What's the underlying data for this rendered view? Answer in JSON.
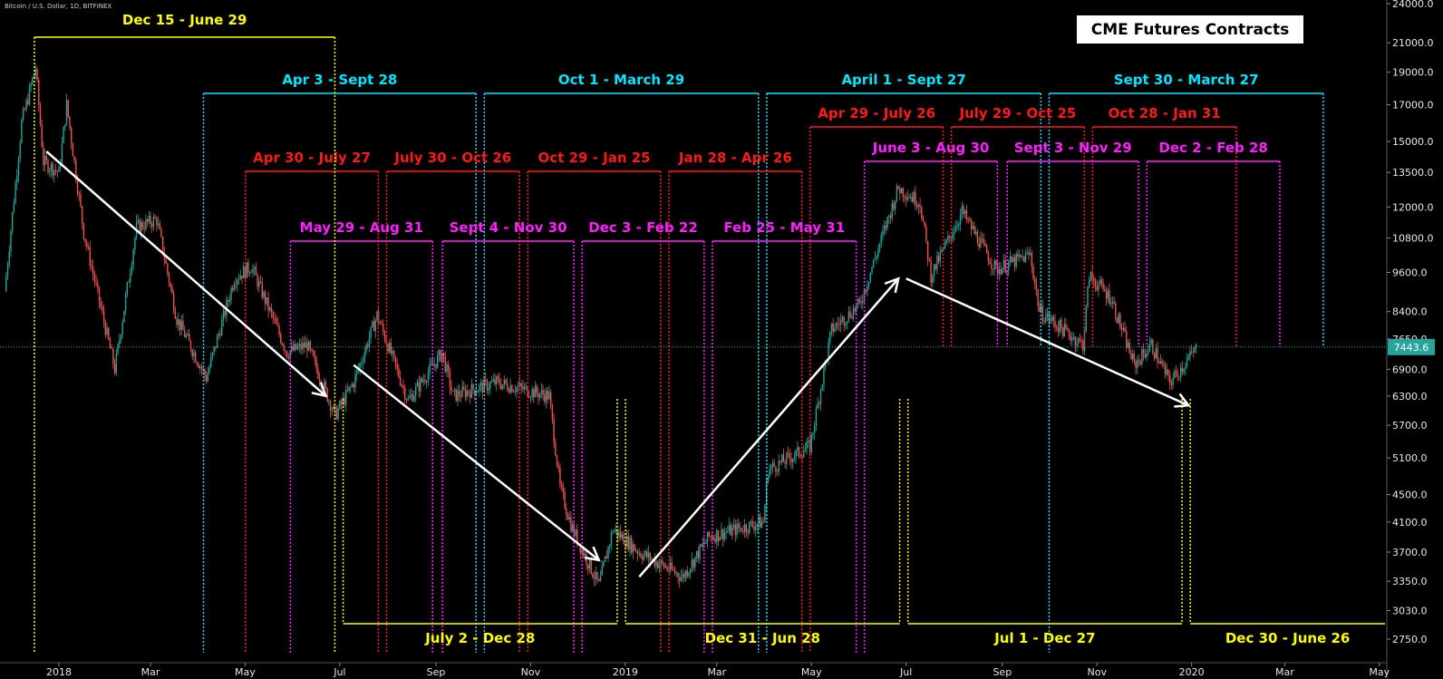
{
  "header": {
    "symbol": "Bitcoin / U.S. Dollar, 1D, BITFINEX",
    "legend": "CME Futures Contracts",
    "last_price": "7443.6"
  },
  "colors": {
    "background": "#000000",
    "semiannual": "#ffff00",
    "quarterly_cyan": "#00e5ff",
    "quarterly_red": "#ff1a1a",
    "quarterly_magenta": "#ff22ff",
    "candle_up": "#26a69a",
    "candle_down": "#ef5350",
    "trend_arrow": "#ffffff",
    "price_badge": "#26a69a"
  },
  "chart_data": {
    "type": "candlestick",
    "title": "",
    "x_tick_labels": [
      "2018",
      "Mar",
      "May",
      "Jul",
      "Sep",
      "Nov",
      "2019",
      "Mar",
      "May",
      "Jul",
      "Sep",
      "Nov",
      "2020",
      "Mar",
      "May"
    ],
    "x_ticks": [
      "2018-01-01",
      "2018-03-01",
      "2018-05-01",
      "2018-07-01",
      "2018-09-01",
      "2018-11-01",
      "2019-01-01",
      "2019-03-01",
      "2019-05-01",
      "2019-07-01",
      "2019-09-01",
      "2019-11-01",
      "2020-01-01",
      "2020-03-01",
      "2020-05-01"
    ],
    "y_scale": "log",
    "y_tick_labels": [
      "24000.0",
      "21000.0",
      "19000.0",
      "17000.0",
      "15000.0",
      "13500.0",
      "12000.0",
      "10800.0",
      "9600.0",
      "8400.0",
      "7650.0",
      "6900.0",
      "6300.0",
      "5700.0",
      "5100.0",
      "4500.0",
      "4100.0",
      "3700.0",
      "3350.0",
      "3030.0",
      "2750.0"
    ],
    "y_ticks": [
      24000,
      21000,
      19000,
      17000,
      15000,
      13500,
      12000,
      10800,
      9600,
      8400,
      7650,
      6900,
      6300,
      5700,
      5100,
      4500,
      4100,
      3700,
      3350,
      3030,
      2750
    ],
    "ylim": [
      2600,
      24500
    ],
    "last_price": 7443.6,
    "price_path": [
      {
        "date": "2017-11-27",
        "close": 9000
      },
      {
        "date": "2017-12-08",
        "close": 16000
      },
      {
        "date": "2017-12-17",
        "close": 19300
      },
      {
        "date": "2017-12-22",
        "close": 14000
      },
      {
        "date": "2018-01-01",
        "close": 13500
      },
      {
        "date": "2018-01-06",
        "close": 17000
      },
      {
        "date": "2018-01-17",
        "close": 11000
      },
      {
        "date": "2018-02-06",
        "close": 6900
      },
      {
        "date": "2018-02-20",
        "close": 11200
      },
      {
        "date": "2018-03-05",
        "close": 11500
      },
      {
        "date": "2018-03-18",
        "close": 8200
      },
      {
        "date": "2018-04-06",
        "close": 6700
      },
      {
        "date": "2018-04-24",
        "close": 9400
      },
      {
        "date": "2018-05-05",
        "close": 9800
      },
      {
        "date": "2018-05-28",
        "close": 7300
      },
      {
        "date": "2018-06-10",
        "close": 7500
      },
      {
        "date": "2018-06-28",
        "close": 5900
      },
      {
        "date": "2018-07-10",
        "close": 6600
      },
      {
        "date": "2018-07-25",
        "close": 8300
      },
      {
        "date": "2018-08-14",
        "close": 6200
      },
      {
        "date": "2018-09-05",
        "close": 7300
      },
      {
        "date": "2018-09-12",
        "close": 6300
      },
      {
        "date": "2018-10-10",
        "close": 6600
      },
      {
        "date": "2018-11-13",
        "close": 6300
      },
      {
        "date": "2018-11-20",
        "close": 4600
      },
      {
        "date": "2018-11-28",
        "close": 4000
      },
      {
        "date": "2018-12-15",
        "close": 3300
      },
      {
        "date": "2018-12-24",
        "close": 4000
      },
      {
        "date": "2019-01-10",
        "close": 3700
      },
      {
        "date": "2019-02-07",
        "close": 3400
      },
      {
        "date": "2019-02-24",
        "close": 3900
      },
      {
        "date": "2019-03-31",
        "close": 4100
      },
      {
        "date": "2019-04-03",
        "close": 4900
      },
      {
        "date": "2019-04-30",
        "close": 5300
      },
      {
        "date": "2019-05-14",
        "close": 7900
      },
      {
        "date": "2019-06-01",
        "close": 8600
      },
      {
        "date": "2019-06-26",
        "close": 12800
      },
      {
        "date": "2019-07-10",
        "close": 12200
      },
      {
        "date": "2019-07-17",
        "close": 9500
      },
      {
        "date": "2019-08-06",
        "close": 11800
      },
      {
        "date": "2019-08-28",
        "close": 9700
      },
      {
        "date": "2019-09-19",
        "close": 10200
      },
      {
        "date": "2019-09-25",
        "close": 8400
      },
      {
        "date": "2019-10-23",
        "close": 7500
      },
      {
        "date": "2019-10-27",
        "close": 9500
      },
      {
        "date": "2019-11-10",
        "close": 8800
      },
      {
        "date": "2019-11-25",
        "close": 7000
      },
      {
        "date": "2019-12-06",
        "close": 7500
      },
      {
        "date": "2019-12-18",
        "close": 6600
      },
      {
        "date": "2020-01-04",
        "close": 7400
      }
    ],
    "trend_arrows": [
      {
        "from": {
          "date": "2017-12-24",
          "price": 14500
        },
        "to": {
          "date": "2018-06-22",
          "price": 6300
        }
      },
      {
        "from": {
          "date": "2018-07-10",
          "price": 7000
        },
        "to": {
          "date": "2018-12-15",
          "price": 3600
        }
      },
      {
        "from": {
          "date": "2019-01-10",
          "price": 3400
        },
        "to": {
          "date": "2019-06-26",
          "price": 9400
        }
      },
      {
        "from": {
          "date": "2019-07-01",
          "price": 9400
        },
        "to": {
          "date": "2019-12-30",
          "price": 6100
        }
      }
    ],
    "contracts": {
      "semiannual": [
        {
          "label": "Dec 15 - June 29",
          "start": "2017-12-15",
          "end": "2018-06-29",
          "label_pos": "top"
        },
        {
          "label": "July 2 - Dec 28",
          "start": "2018-07-02",
          "end": "2018-12-28",
          "label_pos": "bottom"
        },
        {
          "label": "Dec 31 - Jun 28",
          "start": "2018-12-31",
          "end": "2019-06-28",
          "label_pos": "bottom"
        },
        {
          "label": "Jul 1 - Dec 27",
          "start": "2019-07-01",
          "end": "2019-12-27",
          "label_pos": "bottom"
        },
        {
          "label": "Dec 30 - June 26",
          "start": "2019-12-30",
          "end": "2020-06-26",
          "label_pos": "bottom"
        }
      ],
      "quarterly_cyan": [
        {
          "label": "Apr 3 - Sept 28",
          "start": "2018-04-03",
          "end": "2018-09-28"
        },
        {
          "label": "Oct 1 - March 29",
          "start": "2018-10-01",
          "end": "2019-03-29"
        },
        {
          "label": "April 1 - Sept 27",
          "start": "2019-04-01",
          "end": "2019-09-27"
        },
        {
          "label": "Sept 30 - March 27",
          "start": "2019-09-30",
          "end": "2020-03-27"
        }
      ],
      "quarterly_red": [
        {
          "label": "Apr 30 - July 27",
          "start": "2018-04-30",
          "end": "2018-07-27"
        },
        {
          "label": "July 30 - Oct 26",
          "start": "2018-07-30",
          "end": "2018-10-26"
        },
        {
          "label": "Oct 29 - Jan 25",
          "start": "2018-10-29",
          "end": "2019-01-25"
        },
        {
          "label": "Jan 28 - Apr 26",
          "start": "2019-01-28",
          "end": "2019-04-26"
        },
        {
          "label": "Apr 29 - July 26",
          "start": "2019-04-29",
          "end": "2019-07-26"
        },
        {
          "label": "July 29 - Oct 25",
          "start": "2019-07-29",
          "end": "2019-10-25"
        },
        {
          "label": "Oct 28 - Jan 31",
          "start": "2019-10-28",
          "end": "2020-01-31"
        }
      ],
      "quarterly_magenta": [
        {
          "label": "May 29 - Aug 31",
          "start": "2018-05-29",
          "end": "2018-08-31"
        },
        {
          "label": "Sept 4 - Nov 30",
          "start": "2018-09-04",
          "end": "2018-11-30"
        },
        {
          "label": "Dec 3 - Feb 22",
          "start": "2018-12-03",
          "end": "2019-02-22"
        },
        {
          "label": "Feb 25 - May 31",
          "start": "2019-02-25",
          "end": "2019-05-31"
        },
        {
          "label": "June 3 - Aug 30",
          "start": "2019-06-03",
          "end": "2019-08-30"
        },
        {
          "label": "Sept 3 - Nov 29",
          "start": "2019-09-03",
          "end": "2019-11-29"
        },
        {
          "label": "Dec 2 - Feb 28",
          "start": "2019-12-02",
          "end": "2020-02-28"
        }
      ]
    }
  }
}
